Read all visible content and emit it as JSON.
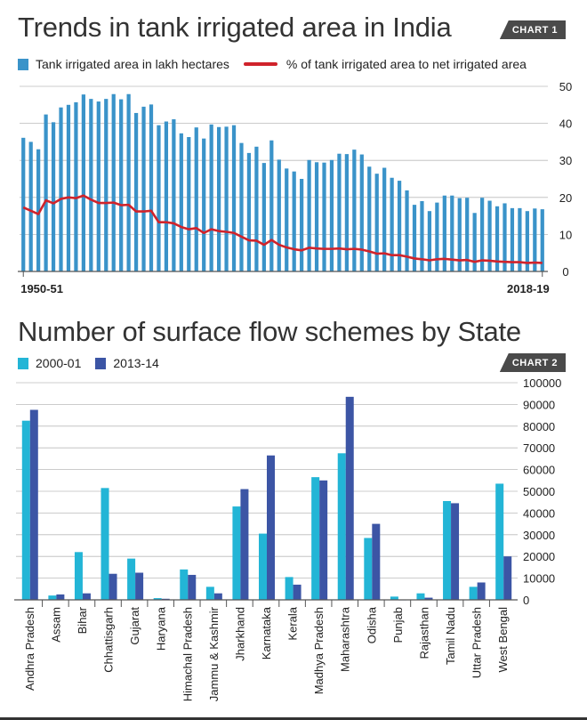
{
  "chart1_header": {
    "title": "Trends in tank irrigated area in India",
    "tag": "CHART 1"
  },
  "chart2_header": {
    "title": "Number of surface flow schemes by State",
    "tag": "CHART 2"
  },
  "colors": {
    "bar1": "#3a93c9",
    "line1": "#d0232b",
    "bar2_a": "#23b5d6",
    "bar2_b": "#3c55a5",
    "grid": "#bbbbbb"
  },
  "chart_data": [
    {
      "type": "bar",
      "title": "Trends in tank irrigated area in India",
      "xlabel": "",
      "ylabel": "",
      "x_tick_labels": [
        "1950-51",
        "2018-19"
      ],
      "ylim": [
        0,
        50
      ],
      "yticks": [
        0,
        10,
        20,
        30,
        40,
        50
      ],
      "grid": true,
      "legend_position": "top",
      "series": [
        {
          "name": "Tank irrigated area in lakh hectares",
          "type": "bar",
          "values": [
            36.1,
            35.0,
            33.0,
            42.4,
            40.3,
            44.3,
            45.0,
            45.7,
            47.8,
            46.6,
            45.9,
            46.6,
            47.9,
            46.5,
            47.9,
            42.8,
            44.5,
            45.1,
            39.5,
            40.5,
            41.1,
            37.3,
            36.3,
            38.9,
            35.9,
            39.7,
            39.0,
            39.1,
            39.5,
            34.7,
            32.0,
            33.7,
            29.3,
            35.4,
            30.2,
            27.8,
            27.0,
            25.0,
            30.1,
            29.5,
            29.4,
            30.1,
            31.8,
            31.7,
            32.9,
            31.6,
            28.3,
            26.4,
            28.0,
            25.3,
            24.5,
            21.9,
            18.0,
            19.0,
            16.3,
            18.6,
            20.5,
            20.5,
            19.8,
            19.9,
            15.8,
            19.9,
            19.1,
            17.6,
            18.4,
            17.1,
            17.1,
            16.3,
            17.0,
            16.8
          ]
        },
        {
          "name": "% of tank irrigated area to net irrigated area",
          "type": "line",
          "values": [
            17.3,
            16.4,
            15.5,
            19.2,
            18.4,
            19.6,
            20.0,
            19.8,
            20.5,
            19.4,
            18.5,
            18.5,
            18.6,
            17.9,
            18.0,
            16.2,
            16.2,
            16.4,
            13.3,
            13.3,
            13.0,
            12.0,
            11.4,
            11.7,
            10.4,
            11.4,
            10.9,
            10.7,
            10.4,
            9.4,
            8.4,
            8.3,
            7.2,
            8.5,
            7.2,
            6.5,
            6.0,
            5.7,
            6.4,
            6.2,
            6.1,
            6.1,
            6.2,
            6.0,
            6.1,
            5.9,
            5.4,
            4.8,
            4.9,
            4.4,
            4.4,
            4.0,
            3.5,
            3.3,
            3.0,
            3.3,
            3.4,
            3.2,
            3.0,
            3.1,
            2.6,
            3.0,
            2.9,
            2.7,
            2.6,
            2.5,
            2.5,
            2.3,
            2.4,
            2.3
          ]
        }
      ]
    },
    {
      "type": "bar",
      "title": "Number of surface flow schemes by State",
      "xlabel": "",
      "ylabel": "",
      "ylim": [
        0,
        100000
      ],
      "yticks": [
        0,
        10000,
        20000,
        30000,
        40000,
        50000,
        60000,
        70000,
        80000,
        90000,
        100000
      ],
      "grid": true,
      "legend_position": "top-left",
      "categories": [
        "Andhra Pradesh",
        "Assam",
        "Bihar",
        "Chhattisgarh",
        "Gujarat",
        "Haryana",
        "Himachal Pradesh",
        "Jammu & Kashmir",
        "Jharkhand",
        "Karnataka",
        "Kerala",
        "Madhya Pradesh",
        "Maharashtra",
        "Odisha",
        "Punjab",
        "Rajasthan",
        "Tamil Nadu",
        "Uttar Pradesh",
        "West Bengal"
      ],
      "series": [
        {
          "name": "2000-01",
          "values": [
            82500,
            2000,
            22000,
            51500,
            19000,
            800,
            14000,
            6000,
            43000,
            30500,
            10500,
            56500,
            67500,
            28500,
            1500,
            3000,
            45500,
            6000,
            53500
          ]
        },
        {
          "name": "2013-14",
          "values": [
            87500,
            2500,
            3000,
            12000,
            12500,
            500,
            11500,
            3000,
            51000,
            66500,
            7000,
            55000,
            93500,
            35000,
            100,
            1000,
            44500,
            8000,
            20000
          ]
        }
      ]
    }
  ]
}
